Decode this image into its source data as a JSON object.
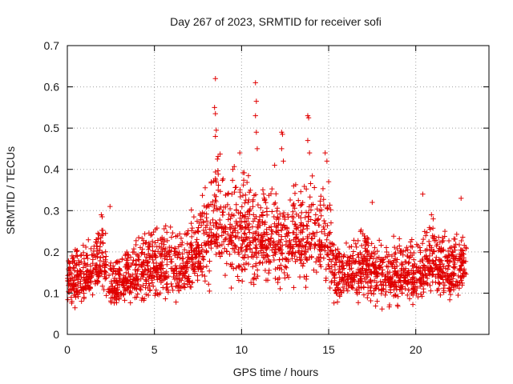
{
  "chart_data": {
    "type": "scatter",
    "title": "Day 267 of 2023, SRMTID for receiver sofi",
    "xlabel": "GPS time / hours",
    "ylabel": "SRMTID / TECUs",
    "xlim": [
      0,
      24.2
    ],
    "ylim": [
      0,
      0.7
    ],
    "xticks": [
      0,
      5,
      10,
      15,
      20
    ],
    "xtick_labels": [
      "0",
      "5",
      "10",
      "15",
      "20"
    ],
    "yticks": [
      0,
      0.1,
      0.2,
      0.3,
      0.4,
      0.5,
      0.6,
      0.7
    ],
    "ytick_labels": [
      "0",
      "0.1",
      "0.2",
      "0.3",
      "0.4",
      "0.5",
      "0.6",
      "0.7"
    ],
    "grid": true,
    "marker": "plus",
    "color": "#e00000",
    "series": [
      {
        "name": "SRMTID",
        "envelope": [
          {
            "x": 0.0,
            "low": 0.05,
            "high": 0.22
          },
          {
            "x": 1.0,
            "low": 0.04,
            "high": 0.22
          },
          {
            "x": 2.0,
            "low": 0.06,
            "high": 0.3
          },
          {
            "x": 2.5,
            "low": 0.04,
            "high": 0.18
          },
          {
            "x": 3.5,
            "low": 0.05,
            "high": 0.22
          },
          {
            "x": 5.0,
            "low": 0.05,
            "high": 0.28
          },
          {
            "x": 6.5,
            "low": 0.05,
            "high": 0.27
          },
          {
            "x": 7.5,
            "low": 0.07,
            "high": 0.33
          },
          {
            "x": 8.5,
            "low": 0.09,
            "high": 0.45
          },
          {
            "x": 10.0,
            "low": 0.08,
            "high": 0.42
          },
          {
            "x": 11.0,
            "low": 0.06,
            "high": 0.4
          },
          {
            "x": 12.5,
            "low": 0.07,
            "high": 0.35
          },
          {
            "x": 14.0,
            "low": 0.08,
            "high": 0.42
          },
          {
            "x": 15.0,
            "low": 0.07,
            "high": 0.35
          },
          {
            "x": 15.5,
            "low": 0.05,
            "high": 0.22
          },
          {
            "x": 17.0,
            "low": 0.04,
            "high": 0.28
          },
          {
            "x": 18.5,
            "low": 0.03,
            "high": 0.25
          },
          {
            "x": 20.0,
            "low": 0.05,
            "high": 0.23
          },
          {
            "x": 21.0,
            "low": 0.06,
            "high": 0.29
          },
          {
            "x": 22.0,
            "low": 0.05,
            "high": 0.25
          },
          {
            "x": 22.9,
            "low": 0.07,
            "high": 0.26
          }
        ],
        "gaps": [
          [
            2.25,
            2.35
          ]
        ],
        "extremes": [
          {
            "x": 8.5,
            "y": 0.62
          },
          {
            "x": 8.45,
            "y": 0.55
          },
          {
            "x": 8.5,
            "y": 0.535
          },
          {
            "x": 8.55,
            "y": 0.495
          },
          {
            "x": 8.5,
            "y": 0.48
          },
          {
            "x": 10.8,
            "y": 0.61
          },
          {
            "x": 10.85,
            "y": 0.565
          },
          {
            "x": 10.8,
            "y": 0.53
          },
          {
            "x": 10.85,
            "y": 0.49
          },
          {
            "x": 10.9,
            "y": 0.45
          },
          {
            "x": 12.3,
            "y": 0.49
          },
          {
            "x": 12.35,
            "y": 0.485
          },
          {
            "x": 12.3,
            "y": 0.45
          },
          {
            "x": 12.4,
            "y": 0.42
          },
          {
            "x": 13.8,
            "y": 0.53
          },
          {
            "x": 13.85,
            "y": 0.525
          },
          {
            "x": 13.8,
            "y": 0.47
          },
          {
            "x": 13.9,
            "y": 0.44
          },
          {
            "x": 9.9,
            "y": 0.44
          },
          {
            "x": 9.5,
            "y": 0.4
          },
          {
            "x": 11.9,
            "y": 0.41
          },
          {
            "x": 14.8,
            "y": 0.44
          },
          {
            "x": 14.9,
            "y": 0.42
          },
          {
            "x": 15.0,
            "y": 0.37
          },
          {
            "x": 2.45,
            "y": 0.31
          },
          {
            "x": 1.95,
            "y": 0.29
          },
          {
            "x": 2.0,
            "y": 0.285
          },
          {
            "x": 17.5,
            "y": 0.32
          },
          {
            "x": 20.4,
            "y": 0.34
          },
          {
            "x": 22.6,
            "y": 0.33
          },
          {
            "x": 20.9,
            "y": 0.29
          },
          {
            "x": 21.0,
            "y": 0.28
          }
        ]
      }
    ]
  }
}
